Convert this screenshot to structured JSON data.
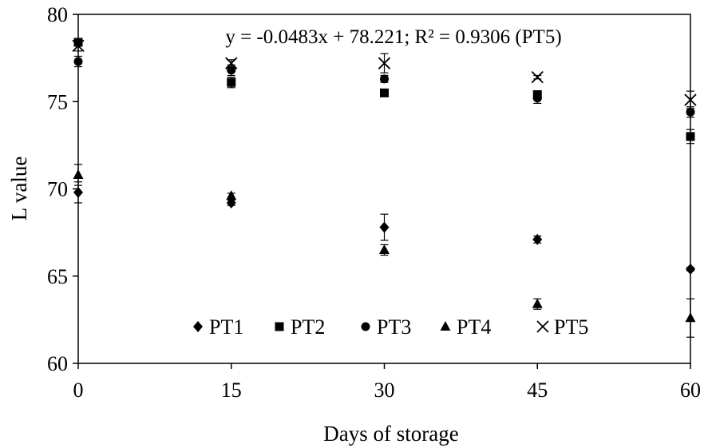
{
  "chart_data": {
    "type": "scatter",
    "xlabel": "Days of storage",
    "ylabel": "L value",
    "xlim": [
      0,
      60
    ],
    "ylim": [
      60,
      80
    ],
    "xticks": [
      0,
      15,
      30,
      45,
      60
    ],
    "yticks": [
      60,
      65,
      70,
      75,
      80
    ],
    "grid": false,
    "legend_position": "bottom-inside",
    "annotation": "y = -0.0483x + 78.221; R² = 0.9306 (PT5)",
    "series": [
      {
        "name": "PT1",
        "marker": "diamond",
        "x": [
          0,
          15,
          30,
          45,
          60
        ],
        "y": [
          69.8,
          69.2,
          67.8,
          67.1,
          65.4
        ],
        "err": [
          0.6,
          0.15,
          0.75,
          0.2,
          0.1
        ]
      },
      {
        "name": "PT2",
        "marker": "square",
        "x": [
          0,
          15,
          30,
          45,
          60
        ],
        "y": [
          78.4,
          76.1,
          75.5,
          75.4,
          73.0
        ],
        "err": [
          0.15,
          0.3,
          0.1,
          0.2,
          0.4
        ]
      },
      {
        "name": "PT3",
        "marker": "circle",
        "x": [
          0,
          15,
          30,
          45,
          60
        ],
        "y": [
          77.3,
          76.8,
          76.3,
          75.2,
          74.4
        ],
        "err": [
          0.3,
          0.3,
          0.2,
          0.3,
          0.3
        ]
      },
      {
        "name": "PT4",
        "marker": "triangle",
        "x": [
          0,
          15,
          30,
          45,
          60
        ],
        "y": [
          70.8,
          69.6,
          66.5,
          63.4,
          62.6
        ],
        "err": [
          0.6,
          0.15,
          0.3,
          0.3,
          1.1
        ]
      },
      {
        "name": "PT5",
        "marker": "x",
        "x": [
          0,
          15,
          30,
          45,
          60
        ],
        "y": [
          78.2,
          77.2,
          77.2,
          76.4,
          75.1
        ],
        "err": [
          0.3,
          0.2,
          0.55,
          0.1,
          0.5
        ]
      }
    ]
  }
}
